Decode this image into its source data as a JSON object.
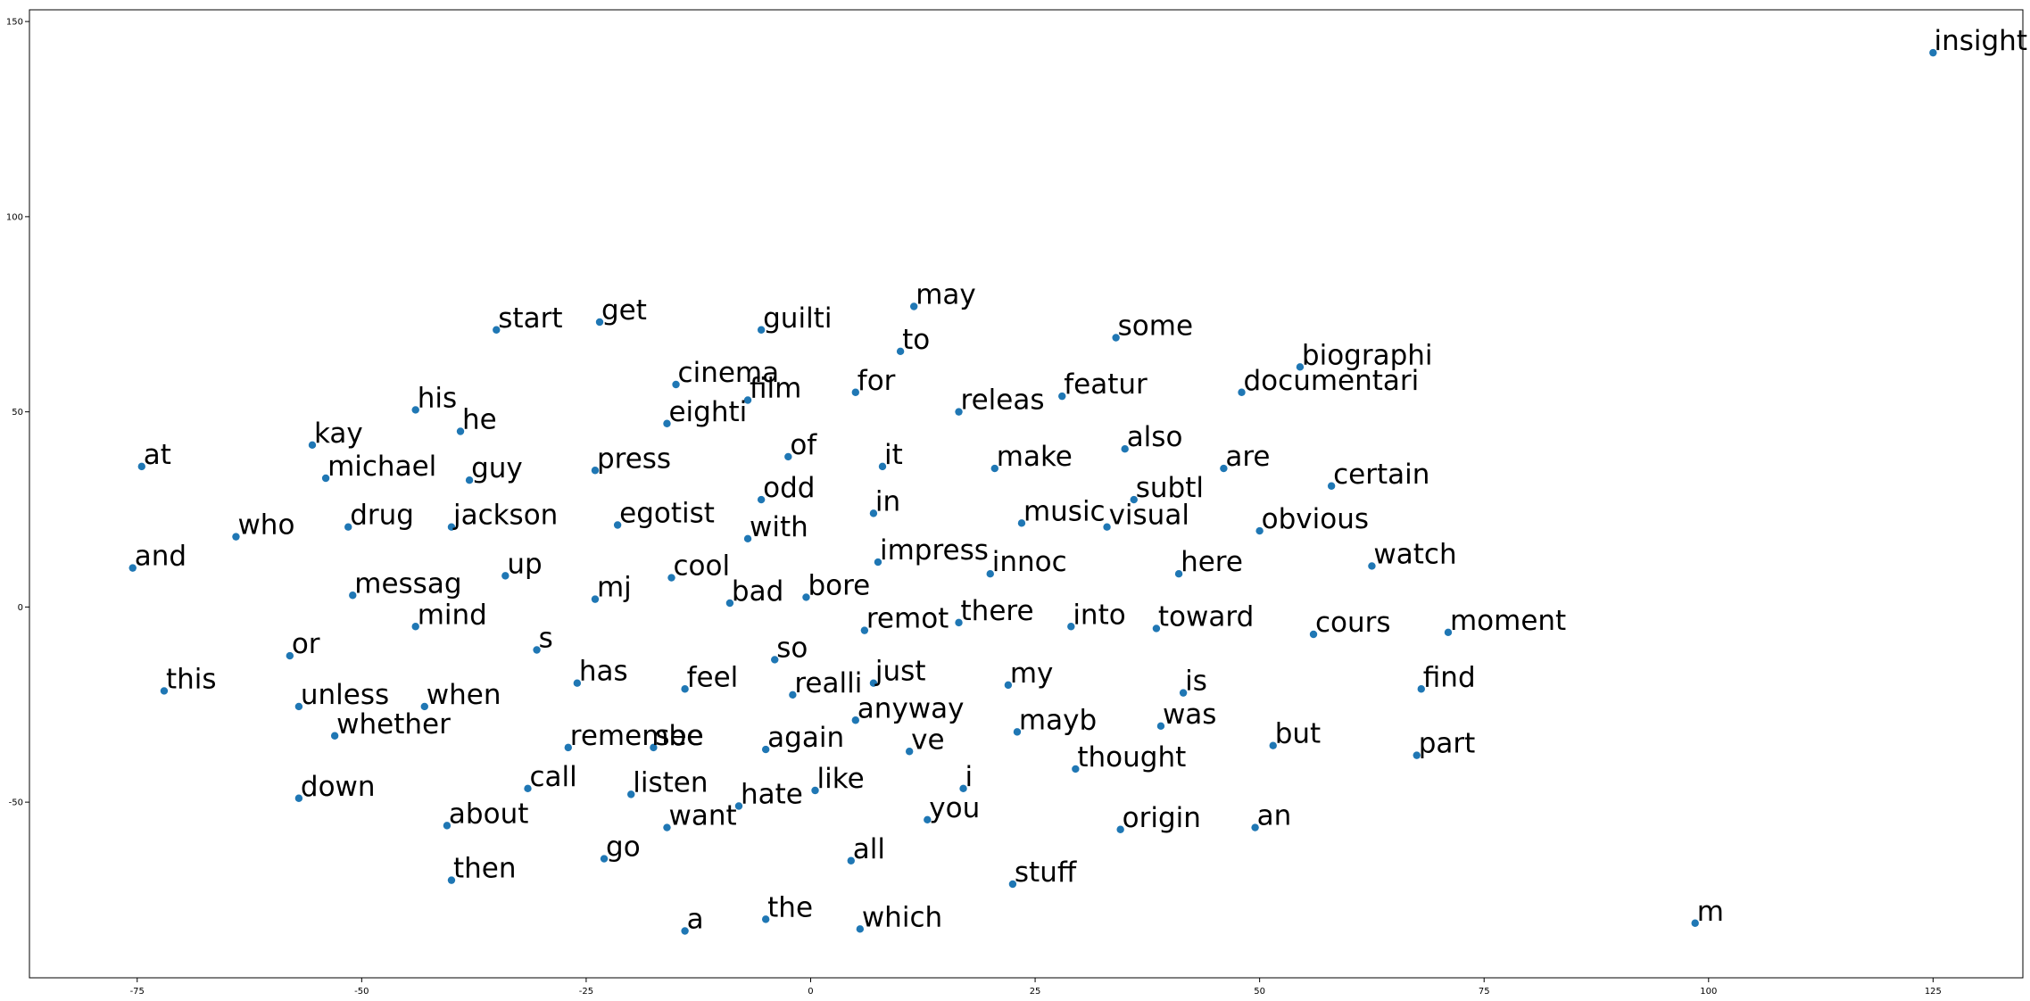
{
  "chart_data": {
    "type": "scatter",
    "title": "",
    "xlabel": "",
    "ylabel": "",
    "xlim": [
      -87,
      135
    ],
    "ylim": [
      -95,
      153
    ],
    "x_ticks": [
      -75,
      -50,
      -25,
      0,
      25,
      50,
      75,
      100,
      125
    ],
    "y_ticks": [
      -50,
      0,
      50,
      100,
      150
    ],
    "x_tick_labels": [
      "-75",
      "-50",
      "-25",
      "0",
      "25",
      "50",
      "75",
      "100",
      "125"
    ],
    "y_tick_labels": [
      "-50",
      "0",
      "50",
      "100",
      "150"
    ],
    "grid": false,
    "marker_color": "#1f77b4",
    "points": [
      {
        "label": "insight",
        "x": 125,
        "y": 142
      },
      {
        "label": "m",
        "x": 98.5,
        "y": -81
      },
      {
        "label": "may",
        "x": 11.5,
        "y": 77
      },
      {
        "label": "start",
        "x": -35,
        "y": 71
      },
      {
        "label": "get",
        "x": -23.5,
        "y": 73
      },
      {
        "label": "guilti",
        "x": -5.5,
        "y": 71
      },
      {
        "label": "to",
        "x": 10,
        "y": 65.5
      },
      {
        "label": "some",
        "x": 34,
        "y": 69
      },
      {
        "label": "biographi",
        "x": 54.5,
        "y": 61.5
      },
      {
        "label": "cinema",
        "x": -15,
        "y": 57
      },
      {
        "label": "film",
        "x": -7,
        "y": 53
      },
      {
        "label": "for",
        "x": 5,
        "y": 55
      },
      {
        "label": "featur",
        "x": 28,
        "y": 54
      },
      {
        "label": "documentari",
        "x": 48,
        "y": 55
      },
      {
        "label": "his",
        "x": -44,
        "y": 50.5
      },
      {
        "label": "releas",
        "x": 16.5,
        "y": 50
      },
      {
        "label": "eighti",
        "x": -16,
        "y": 47
      },
      {
        "label": "he",
        "x": -39,
        "y": 45
      },
      {
        "label": "kay",
        "x": -55.5,
        "y": 41.5
      },
      {
        "label": "also",
        "x": 35,
        "y": 40.5
      },
      {
        "label": "of",
        "x": -2.5,
        "y": 38.5
      },
      {
        "label": "at",
        "x": -74.5,
        "y": 36
      },
      {
        "label": "it",
        "x": 8,
        "y": 36
      },
      {
        "label": "make",
        "x": 20.5,
        "y": 35.5
      },
      {
        "label": "are",
        "x": 46,
        "y": 35.5
      },
      {
        "label": "press",
        "x": -24,
        "y": 35
      },
      {
        "label": "michael",
        "x": -54,
        "y": 33
      },
      {
        "label": "guy",
        "x": -38,
        "y": 32.5
      },
      {
        "label": "certain",
        "x": 58,
        "y": 31
      },
      {
        "label": "subtl",
        "x": 36,
        "y": 27.5
      },
      {
        "label": "odd",
        "x": -5.5,
        "y": 27.5
      },
      {
        "label": "in",
        "x": 7,
        "y": 24
      },
      {
        "label": "music",
        "x": 23.5,
        "y": 21.5
      },
      {
        "label": "visual",
        "x": 33,
        "y": 20.5
      },
      {
        "label": "obvious",
        "x": 50,
        "y": 19.5
      },
      {
        "label": "drug",
        "x": -51.5,
        "y": 20.5
      },
      {
        "label": "jackson",
        "x": -40,
        "y": 20.5
      },
      {
        "label": "egotist",
        "x": -21.5,
        "y": 21
      },
      {
        "label": "who",
        "x": -64,
        "y": 18
      },
      {
        "label": "with",
        "x": -7,
        "y": 17.5
      },
      {
        "label": "impress",
        "x": 7.5,
        "y": 11.5
      },
      {
        "label": "and",
        "x": -75.5,
        "y": 10
      },
      {
        "label": "watch",
        "x": 62.5,
        "y": 10.5
      },
      {
        "label": "innoc",
        "x": 20,
        "y": 8.5
      },
      {
        "label": "here",
        "x": 41,
        "y": 8.5
      },
      {
        "label": "up",
        "x": -34,
        "y": 8
      },
      {
        "label": "cool",
        "x": -15.5,
        "y": 7.5
      },
      {
        "label": "messag",
        "x": -51,
        "y": 3
      },
      {
        "label": "bore",
        "x": -0.5,
        "y": 2.5
      },
      {
        "label": "mj",
        "x": -24,
        "y": 2
      },
      {
        "label": "bad",
        "x": -9,
        "y": 1
      },
      {
        "label": "there",
        "x": 16.5,
        "y": -4
      },
      {
        "label": "into",
        "x": 29,
        "y": -5
      },
      {
        "label": "mind",
        "x": -44,
        "y": -5
      },
      {
        "label": "toward",
        "x": 38.5,
        "y": -5.5
      },
      {
        "label": "remot",
        "x": 6,
        "y": -6
      },
      {
        "label": "cours",
        "x": 56,
        "y": -7
      },
      {
        "label": "moment",
        "x": 71,
        "y": -6.5
      },
      {
        "label": "s",
        "x": -30.5,
        "y": -11
      },
      {
        "label": "or",
        "x": -58,
        "y": -12.5
      },
      {
        "label": "so",
        "x": -4,
        "y": -13.5
      },
      {
        "label": "has",
        "x": -26,
        "y": -19.5
      },
      {
        "label": "just",
        "x": 7,
        "y": -19.5
      },
      {
        "label": "my",
        "x": 22,
        "y": -20
      },
      {
        "label": "feel",
        "x": -14,
        "y": -21
      },
      {
        "label": "find",
        "x": 68,
        "y": -21
      },
      {
        "label": "this",
        "x": -72,
        "y": -21.5
      },
      {
        "label": "is",
        "x": 41.5,
        "y": -22
      },
      {
        "label": "realli",
        "x": -2,
        "y": -22.5
      },
      {
        "label": "unless",
        "x": -57,
        "y": -25.5
      },
      {
        "label": "when",
        "x": -43,
        "y": -25.5
      },
      {
        "label": "anyway",
        "x": 5,
        "y": -29
      },
      {
        "label": "was",
        "x": 39,
        "y": -30.5
      },
      {
        "label": "mayb",
        "x": 23,
        "y": -32
      },
      {
        "label": "whether",
        "x": -53,
        "y": -33
      },
      {
        "label": "see",
        "x": -17.5,
        "y": -36
      },
      {
        "label": "remembe",
        "x": -27,
        "y": -36
      },
      {
        "label": "but",
        "x": 51.5,
        "y": -35.5
      },
      {
        "label": "again",
        "x": -5,
        "y": -36.5
      },
      {
        "label": "ve",
        "x": 11,
        "y": -37
      },
      {
        "label": "part",
        "x": 67.5,
        "y": -38
      },
      {
        "label": "thought",
        "x": 29.5,
        "y": -41.5
      },
      {
        "label": "call",
        "x": -31.5,
        "y": -46.5
      },
      {
        "label": "i",
        "x": 17,
        "y": -46.5
      },
      {
        "label": "like",
        "x": 0.5,
        "y": -47
      },
      {
        "label": "listen",
        "x": -20,
        "y": -48
      },
      {
        "label": "down",
        "x": -57,
        "y": -49
      },
      {
        "label": "hate",
        "x": -8,
        "y": -51
      },
      {
        "label": "you",
        "x": 13,
        "y": -54.5
      },
      {
        "label": "about",
        "x": -40.5,
        "y": -56
      },
      {
        "label": "want",
        "x": -16,
        "y": -56.5
      },
      {
        "label": "origin",
        "x": 34.5,
        "y": -57
      },
      {
        "label": "an",
        "x": 49.5,
        "y": -56.5
      },
      {
        "label": "go",
        "x": -23,
        "y": -64.5
      },
      {
        "label": "all",
        "x": 4.5,
        "y": -65
      },
      {
        "label": "then",
        "x": -40,
        "y": -70
      },
      {
        "label": "stuff",
        "x": 22.5,
        "y": -71
      },
      {
        "label": "the",
        "x": -5,
        "y": -80
      },
      {
        "label": "a",
        "x": -14,
        "y": -83
      },
      {
        "label": "which",
        "x": 5.5,
        "y": -82.5
      }
    ]
  }
}
